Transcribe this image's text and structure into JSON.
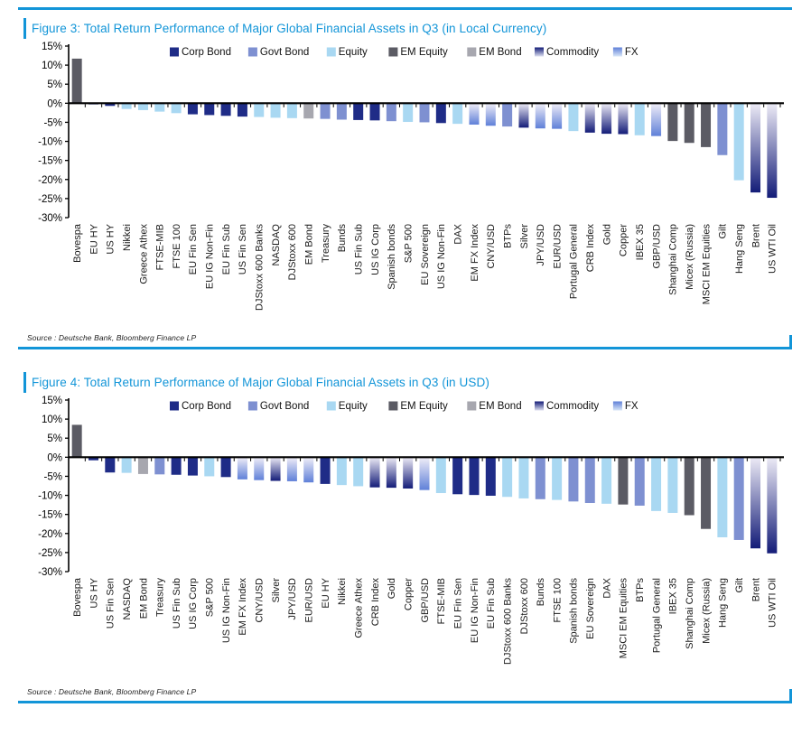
{
  "colors": {
    "accent_blue": "#1295D8",
    "axis_black": "#000000",
    "corp": "#1F2C87",
    "govt": "#7E90D1",
    "equity": "#A9D8F2",
    "em_equity": "#5B5B64",
    "em_bond": "#A7A7AF",
    "commodity_gradient_top": "#EDEBF6",
    "commodity_gradient_bottom": "#131C78",
    "fx_gradient_top": "#F1EEF8",
    "fx_gradient_bottom": "#5F80D8"
  },
  "chart_data": [
    {
      "type": "bar",
      "title": "Figure 3: Total Return Performance of Major Global Financial Assets in Q3 (in Local Currency)",
      "source": "Source : Deutsche Bank, Bloomberg Finance LP",
      "ylabel": "",
      "xlabel": "",
      "ylim": [
        -30,
        15
      ],
      "ytick_step": 5,
      "ytick_suffix": "%",
      "grid": false,
      "legend_position": "top",
      "legend": [
        {
          "label": "Corp Bond",
          "key": "corp"
        },
        {
          "label": "Govt Bond",
          "key": "govt"
        },
        {
          "label": "Equity",
          "key": "equity"
        },
        {
          "label": "EM Equity",
          "key": "em_equity"
        },
        {
          "label": "EM Bond",
          "key": "em_bond"
        },
        {
          "label": "Commodity",
          "key": "commodity"
        },
        {
          "label": "FX",
          "key": "fx"
        }
      ],
      "categories": [
        "Bovespa",
        "EU HY",
        "US HY",
        "Nikkei",
        "Greece Athex",
        "FTSE-MIB",
        "FTSE 100",
        "EU Fin Sen",
        "EU IG Non-Fin",
        "EU Fin Sub",
        "US Fin Sen",
        "DJStoxx 600 Banks",
        "NASDAQ",
        "DJStoxx 600",
        "EM Bond",
        "Treasury",
        "Bunds",
        "US Fin Sub",
        "US IG Corp",
        "Spanish bonds",
        "S&P 500",
        "EU Sovereign",
        "US IG Non-Fin",
        "DAX",
        "EM FX Index",
        "CNY/USD",
        "BTPs",
        "Silver",
        "JPY/USD",
        "EUR/USD",
        "Portugal General",
        "CRB Index",
        "Gold",
        "Copper",
        "IBEX 35",
        "GBP/USD",
        "Shanghai Comp",
        "Micex (Russia)",
        "MSCI EM Equities",
        "Gilt",
        "Hang Seng",
        "Brent",
        "US WTI Oil"
      ],
      "values": [
        11.7,
        -0.3,
        -0.7,
        -1.5,
        -1.8,
        -2.2,
        -2.6,
        -2.9,
        -3.1,
        -3.3,
        -3.5,
        -3.6,
        -3.8,
        -3.9,
        -4.0,
        -4.1,
        -4.3,
        -4.4,
        -4.5,
        -4.7,
        -4.9,
        -5.0,
        -5.2,
        -5.4,
        -5.6,
        -5.9,
        -6.1,
        -6.4,
        -6.6,
        -6.7,
        -7.3,
        -7.7,
        -8.0,
        -8.1,
        -8.4,
        -8.6,
        -9.9,
        -10.4,
        -11.5,
        -13.6,
        -20.2,
        -23.4,
        -24.8
      ],
      "asset_class": [
        "em_equity",
        "corp",
        "corp",
        "equity",
        "equity",
        "equity",
        "equity",
        "corp",
        "corp",
        "corp",
        "corp",
        "equity",
        "equity",
        "equity",
        "em_bond",
        "govt",
        "govt",
        "corp",
        "corp",
        "govt",
        "equity",
        "govt",
        "corp",
        "equity",
        "fx",
        "fx",
        "govt",
        "commodity",
        "fx",
        "fx",
        "equity",
        "commodity",
        "commodity",
        "commodity",
        "equity",
        "fx",
        "em_equity",
        "em_equity",
        "em_equity",
        "govt",
        "equity",
        "commodity",
        "commodity"
      ]
    },
    {
      "type": "bar",
      "title": "Figure 4: Total Return Performance of Major Global Financial Assets in Q3 (in USD)",
      "source": "Source : Deutsche Bank, Bloomberg Finance LP",
      "ylabel": "",
      "xlabel": "",
      "ylim": [
        -30,
        15
      ],
      "ytick_step": 5,
      "ytick_suffix": "%",
      "grid": false,
      "legend_position": "top",
      "legend": [
        {
          "label": "Corp Bond",
          "key": "corp"
        },
        {
          "label": "Govt Bond",
          "key": "govt"
        },
        {
          "label": "Equity",
          "key": "equity"
        },
        {
          "label": "EM Equity",
          "key": "em_equity"
        },
        {
          "label": "EM Bond",
          "key": "em_bond"
        },
        {
          "label": "Commodity",
          "key": "commodity"
        },
        {
          "label": "FX",
          "key": "fx"
        }
      ],
      "categories": [
        "Bovespa",
        "US HY",
        "US Fin Sen",
        "NASDAQ",
        "EM Bond",
        "Treasury",
        "US Fin Sub",
        "US IG Corp",
        "S&P 500",
        "US IG Non-Fin",
        "EM FX Index",
        "CNY/USD",
        "Silver",
        "JPY/USD",
        "EUR/USD",
        "EU HY",
        "Nikkei",
        "Greece Athex",
        "CRB Index",
        "Gold",
        "Copper",
        "GBP/USD",
        "FTSE-MIB",
        "EU Fin Sen",
        "EU IG Non-Fin",
        "EU Fin Sub",
        "DJStoxx 600 Banks",
        "DJStoxx 600",
        "Bunds",
        "FTSE 100",
        "Spanish bonds",
        "EU Sovereign",
        "DAX",
        "MSCI EM Equities",
        "BTPs",
        "Portugal General",
        "IBEX 35",
        "Shanghai Comp",
        "Micex (Russia)",
        "Hang Seng",
        "Gilt",
        "Brent",
        "US WTI Oil"
      ],
      "values": [
        8.5,
        -0.8,
        -4.0,
        -4.1,
        -4.4,
        -4.5,
        -4.6,
        -4.8,
        -5.0,
        -5.2,
        -5.8,
        -6.0,
        -6.2,
        -6.3,
        -6.6,
        -7.0,
        -7.3,
        -7.6,
        -7.9,
        -8.0,
        -8.2,
        -8.6,
        -9.4,
        -9.7,
        -9.9,
        -10.1,
        -10.4,
        -10.8,
        -11.0,
        -11.2,
        -11.6,
        -12.0,
        -12.2,
        -12.4,
        -12.7,
        -14.1,
        -14.6,
        -15.2,
        -18.8,
        -21.0,
        -21.7,
        -23.9,
        -25.2
      ],
      "asset_class": [
        "em_equity",
        "corp",
        "corp",
        "equity",
        "em_bond",
        "govt",
        "corp",
        "corp",
        "equity",
        "corp",
        "fx",
        "fx",
        "commodity",
        "fx",
        "fx",
        "corp",
        "equity",
        "equity",
        "commodity",
        "commodity",
        "commodity",
        "fx",
        "equity",
        "corp",
        "corp",
        "corp",
        "equity",
        "equity",
        "govt",
        "equity",
        "govt",
        "govt",
        "equity",
        "em_equity",
        "govt",
        "equity",
        "equity",
        "em_equity",
        "em_equity",
        "equity",
        "govt",
        "commodity",
        "commodity"
      ]
    }
  ]
}
